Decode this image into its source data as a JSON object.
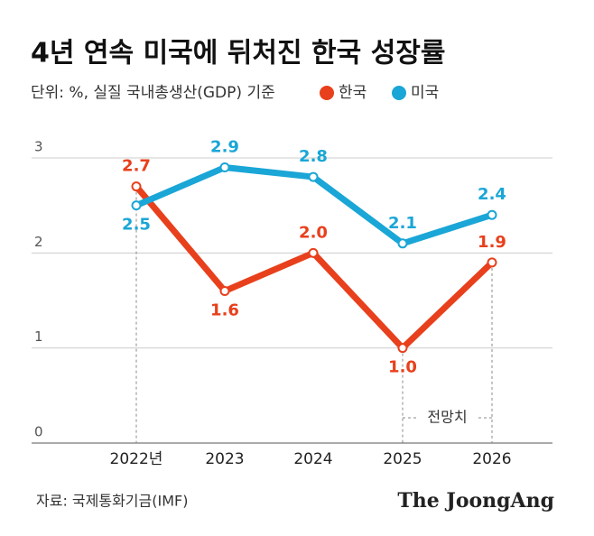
{
  "chart_data": {
    "type": "line",
    "title": "4년 연속 미국에 뒤처진 한국 성장률",
    "subtitle": "단위: %, 실질 국내총생산(GDP) 기준",
    "categories": [
      "2022년",
      "2023",
      "2024",
      "2025",
      "2026"
    ],
    "series": [
      {
        "name": "한국",
        "color": "#e8401c",
        "values": [
          2.7,
          1.6,
          2.0,
          1.0,
          1.9
        ],
        "value_labels": [
          "2.7",
          "1.6",
          "2.0",
          "1.0",
          "1.9"
        ]
      },
      {
        "name": "미국",
        "color": "#1aa6d6",
        "values": [
          2.5,
          2.9,
          2.8,
          2.1,
          2.4
        ],
        "value_labels": [
          "2.5",
          "2.9",
          "2.8",
          "2.1",
          "2.4"
        ]
      }
    ],
    "ylim": [
      0,
      3
    ],
    "yticks": [
      0,
      1,
      2,
      3
    ],
    "grid": true,
    "annotation": "전망치",
    "source": "자료: 국제통화기금(IMF)",
    "brand": "The JoongAng"
  }
}
